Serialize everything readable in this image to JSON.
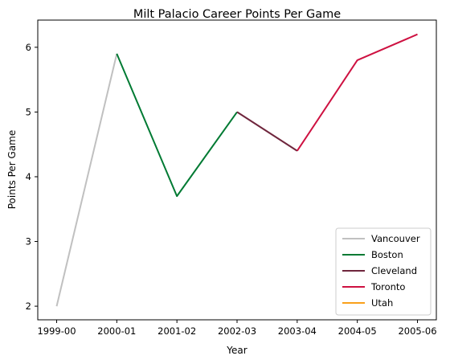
{
  "chart_data": {
    "type": "line",
    "title": "Milt Palacio Career Points Per Game",
    "xlabel": "Year",
    "ylabel": "Points Per Game",
    "categories": [
      "1999-00",
      "2000-01",
      "2001-02",
      "2002-03",
      "2003-04",
      "2004-05",
      "2005-06"
    ],
    "yticks": [
      2,
      3,
      4,
      5,
      6
    ],
    "ylim": [
      1.79,
      6.42
    ],
    "grid": false,
    "legend_position": "bottom-right",
    "series": [
      {
        "name": "Vancouver",
        "color": "#c0c0c0",
        "points": [
          [
            "1999-00",
            2.0
          ],
          [
            "2000-01",
            5.9
          ]
        ]
      },
      {
        "name": "Boston",
        "color": "#007a33",
        "points": [
          [
            "2000-01",
            5.9
          ],
          [
            "2001-02",
            3.7
          ],
          [
            "2002-03",
            5.0
          ]
        ]
      },
      {
        "name": "Cleveland",
        "color": "#6f263d",
        "points": [
          [
            "2002-03",
            5.0
          ],
          [
            "2003-04",
            4.4
          ]
        ]
      },
      {
        "name": "Toronto",
        "color": "#ce1141",
        "points": [
          [
            "2003-04",
            4.4
          ],
          [
            "2004-05",
            5.8
          ],
          [
            "2005-06",
            6.2
          ]
        ]
      },
      {
        "name": "Utah",
        "color": "#f9a01b",
        "points": []
      }
    ]
  }
}
